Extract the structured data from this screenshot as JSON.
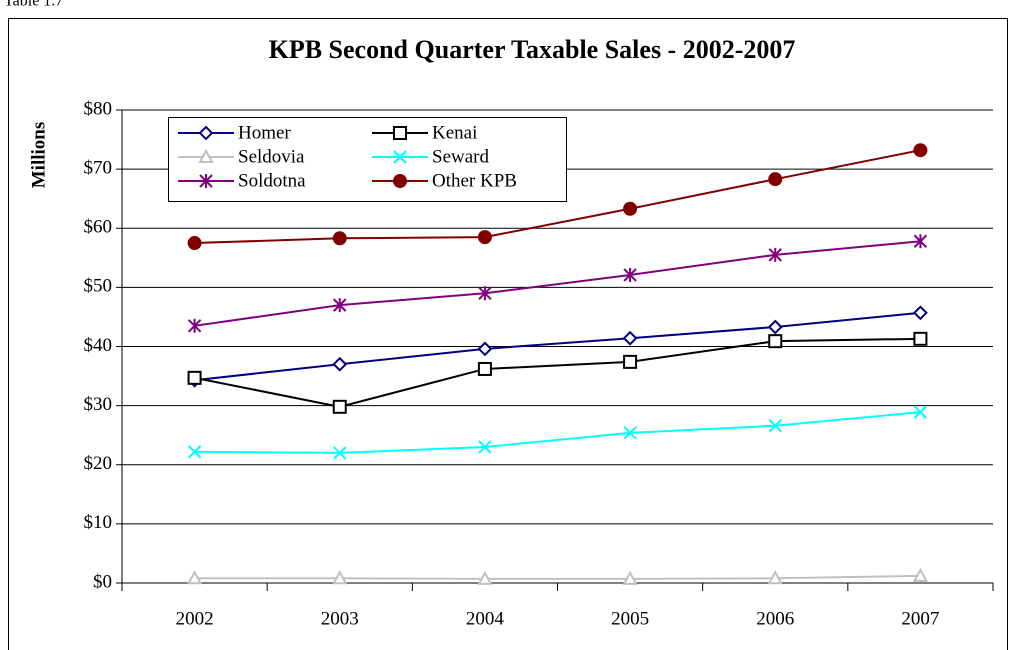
{
  "caption": "Table 1.7",
  "chart_data": {
    "type": "line",
    "title": "KPB Second Quarter Taxable Sales - 2002-2007",
    "y_label": "Millions",
    "categories": [
      "2002",
      "2003",
      "2004",
      "2005",
      "2006",
      "2007"
    ],
    "ylim": [
      0,
      80
    ],
    "yticks": [
      {
        "value": 0,
        "label": "$0"
      },
      {
        "value": 10,
        "label": "$10"
      },
      {
        "value": 20,
        "label": "$20"
      },
      {
        "value": 30,
        "label": "$30"
      },
      {
        "value": 40,
        "label": "$40"
      },
      {
        "value": 50,
        "label": "$50"
      },
      {
        "value": 60,
        "label": "$60"
      },
      {
        "value": 70,
        "label": "$70"
      },
      {
        "value": 80,
        "label": "$80"
      }
    ],
    "grid": true,
    "legend": "top-left",
    "series": [
      {
        "name": "Homer",
        "color": "#000080",
        "marker": "diamond",
        "values": [
          34.3,
          37.0,
          39.6,
          41.4,
          43.3,
          45.7
        ]
      },
      {
        "name": "Kenai",
        "color": "#000000",
        "marker": "square",
        "values": [
          34.7,
          29.8,
          36.2,
          37.4,
          40.9,
          41.3
        ]
      },
      {
        "name": "Seldovia",
        "color": "#c0c0c0",
        "marker": "triangle",
        "values": [
          0.8,
          0.8,
          0.7,
          0.7,
          0.8,
          1.2
        ]
      },
      {
        "name": "Seward",
        "color": "#00ffff",
        "marker": "x",
        "values": [
          22.2,
          22.0,
          23.0,
          25.4,
          26.6,
          28.9
        ]
      },
      {
        "name": "Soldotna",
        "color": "#800080",
        "marker": "asterisk",
        "values": [
          43.5,
          47.0,
          49.0,
          52.1,
          55.5,
          57.8
        ]
      },
      {
        "name": "Other KPB",
        "color": "#800000",
        "marker": "circle",
        "values": [
          57.5,
          58.3,
          58.5,
          63.3,
          68.3,
          73.2
        ]
      }
    ]
  }
}
